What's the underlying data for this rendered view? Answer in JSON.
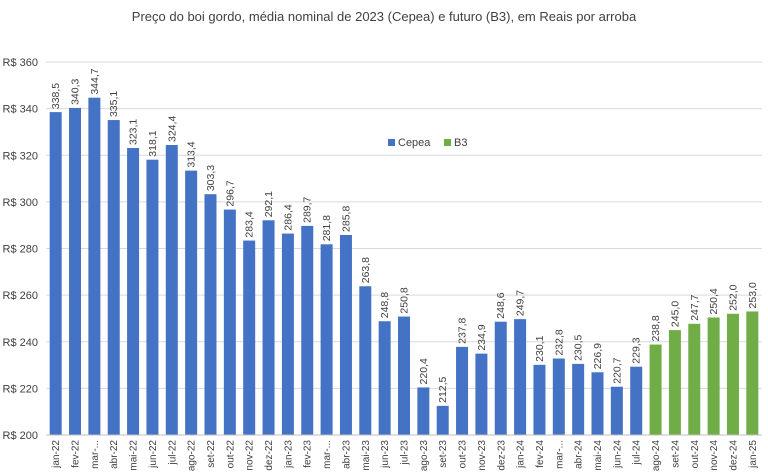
{
  "chart_data": {
    "type": "bar",
    "title": "Preço do boi gordo, média nominal de 2023 (Cepea) e futuro (B3), em Reais por arroba",
    "xlabel": "",
    "ylabel": "",
    "ylim": [
      200,
      360
    ],
    "yticks": [
      200,
      220,
      240,
      260,
      280,
      300,
      320,
      340,
      360
    ],
    "ytick_prefix": "R$ ",
    "grid": true,
    "legend_position": "upper-center",
    "colors": {
      "Cepea": "#4472C4",
      "B3": "#70AD47"
    },
    "series": [
      {
        "name": "Cepea",
        "categories": [
          "jan-22",
          "fev-22",
          "mar-...",
          "abr-22",
          "mai-22",
          "jun-22",
          "jul-22",
          "ago-22",
          "set-22",
          "out-22",
          "nov-22",
          "dez-22",
          "jan-23",
          "fev-23",
          "mar-...",
          "abr-23",
          "mai-23",
          "jun-23",
          "jul-23",
          "ago-23",
          "set-23",
          "out-23",
          "nov-23",
          "dez-23",
          "jan-24",
          "fev-24",
          "mar-...",
          "abr-24",
          "mai-24",
          "jun-24",
          "jul-24"
        ],
        "values": [
          338.5,
          340.3,
          344.7,
          335.1,
          323.1,
          318.1,
          324.4,
          313.4,
          303.3,
          296.7,
          283.4,
          292.1,
          286.4,
          289.7,
          281.8,
          285.8,
          263.8,
          248.8,
          250.8,
          220.4,
          212.5,
          237.8,
          234.9,
          248.6,
          249.7,
          230.1,
          232.8,
          230.5,
          226.9,
          220.7,
          229.3
        ],
        "labels": [
          "338,5",
          "340,3",
          "344,7",
          "335,1",
          "323,1",
          "318,1",
          "324,4",
          "313,4",
          "303,3",
          "296,7",
          "283,4",
          "292,1",
          "286,4",
          "289,7",
          "281,8",
          "285,8",
          "263,8",
          "248,8",
          "250,8",
          "220,4",
          "212,5",
          "237,8",
          "234,9",
          "248,6",
          "249,7",
          "230,1",
          "232,8",
          "230,5",
          "226,9",
          "220,7",
          "229,3"
        ]
      },
      {
        "name": "B3",
        "categories": [
          "ago-24",
          "set-24",
          "out-24",
          "nov-24",
          "dez-24",
          "jan-25"
        ],
        "values": [
          238.8,
          245.0,
          247.7,
          250.4,
          252.0,
          253.0
        ],
        "labels": [
          "238,8",
          "245,0",
          "247,7",
          "250,4",
          "252,0",
          "253,0"
        ]
      }
    ]
  }
}
